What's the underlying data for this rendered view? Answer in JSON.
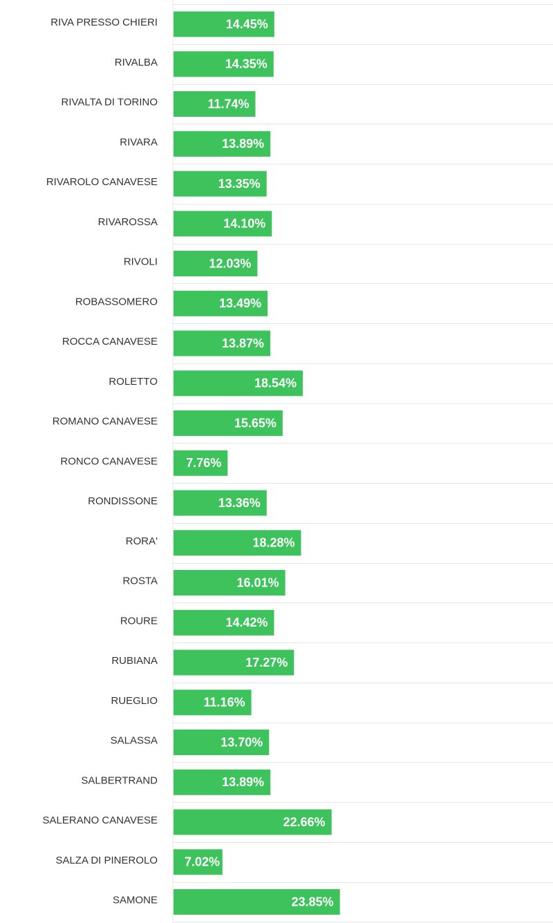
{
  "chart_data": {
    "type": "bar",
    "orientation": "horizontal",
    "categories": [
      "RIVA PRESSO CHIERI",
      "RIVALBA",
      "RIVALTA DI TORINO",
      "RIVARA",
      "RIVAROLO CANAVESE",
      "RIVAROSSA",
      "RIVOLI",
      "ROBASSOMERO",
      "ROCCA CANAVESE",
      "ROLETTO",
      "ROMANO CANAVESE",
      "RONCO CANAVESE",
      "RONDISSONE",
      "RORA'",
      "ROSTA",
      "ROURE",
      "RUBIANA",
      "RUEGLIO",
      "SALASSA",
      "SALBERTRAND",
      "SALERANO CANAVESE",
      "SALZA DI PINEROLO",
      "SAMONE"
    ],
    "values": [
      14.45,
      14.35,
      11.74,
      13.89,
      13.35,
      14.1,
      12.03,
      13.49,
      13.87,
      18.54,
      15.65,
      7.76,
      13.36,
      18.28,
      16.01,
      14.42,
      17.27,
      11.16,
      13.7,
      13.89,
      22.66,
      7.02,
      23.85
    ],
    "value_labels": [
      "14.45%",
      "14.35%",
      "11.74%",
      "13.89%",
      "13.35%",
      "14.10%",
      "12.03%",
      "13.49%",
      "13.87%",
      "18.54%",
      "15.65%",
      "7.76%",
      "13.36%",
      "18.28%",
      "16.01%",
      "14.42%",
      "17.27%",
      "11.16%",
      "13.70%",
      "13.89%",
      "22.66%",
      "7.02%",
      "23.85%"
    ],
    "title": "",
    "xlabel": "",
    "ylabel": "",
    "xlim": [
      0,
      54.5
    ],
    "grid": true,
    "legend": "none",
    "bar_color": "#3dc25c",
    "grid_color": "#e6e6e6",
    "label_color": "#333333",
    "value_label_color": "#ffffff"
  }
}
